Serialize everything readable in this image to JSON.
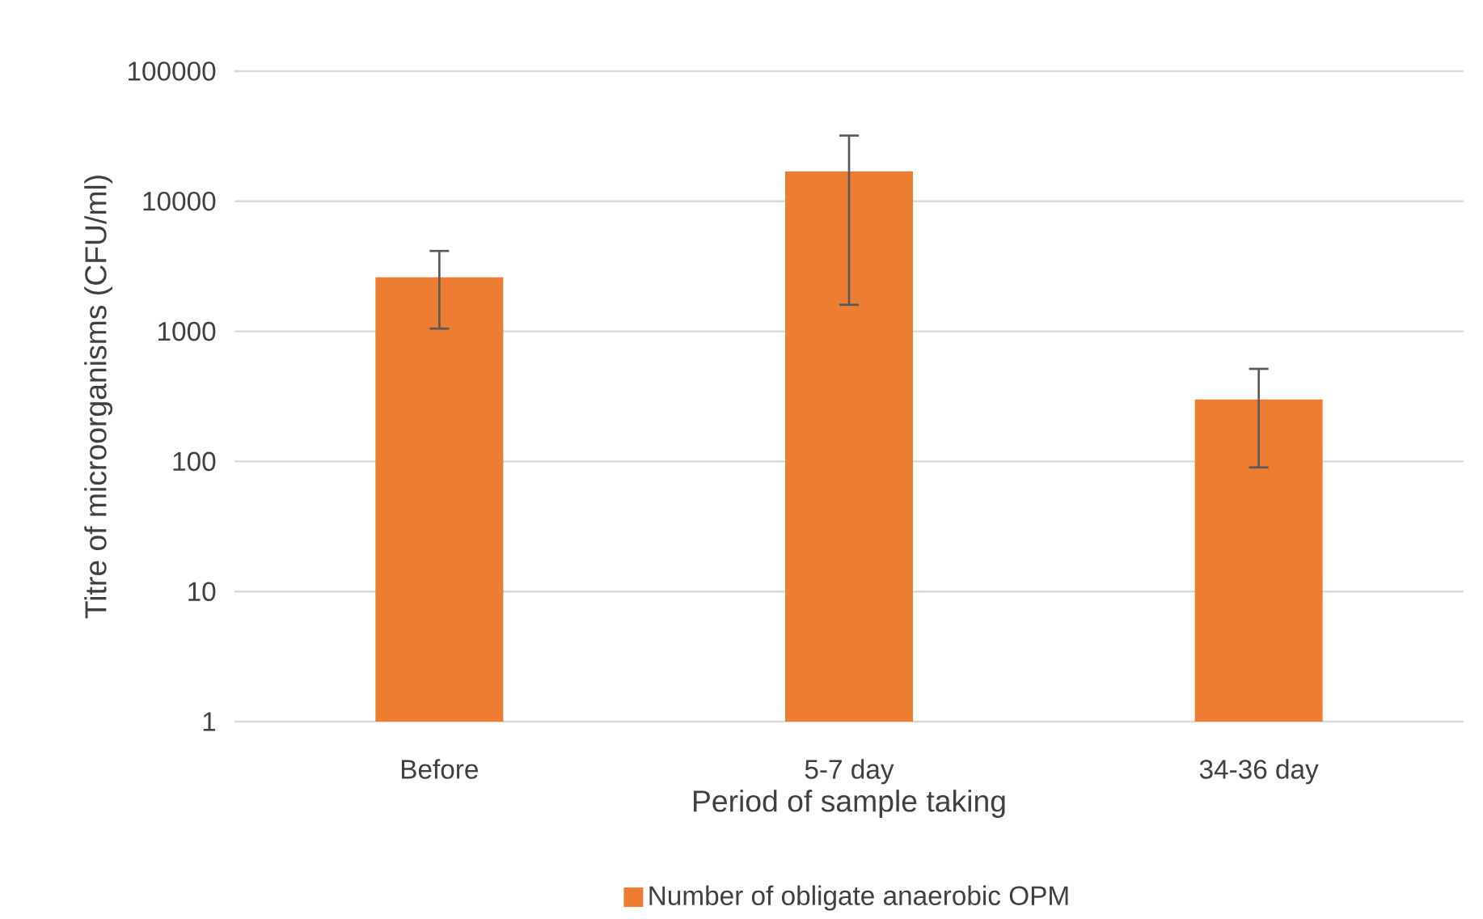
{
  "chart_data": {
    "type": "bar",
    "xlabel": "Period of sample taking",
    "ylabel": "Titre of microorganisms (CFU/ml)",
    "categories": [
      "Before",
      "5-7 day",
      "34-36 day"
    ],
    "series": [
      {
        "name": "Number of obligate anaerobic OPM",
        "color": "#ed7d31",
        "values": [
          2600,
          17000,
          300
        ],
        "errors": [
          [
            1050,
            4150
          ],
          [
            1600,
            32000
          ],
          [
            90,
            515
          ]
        ]
      }
    ],
    "log": "y",
    "ylim": [
      1,
      100000
    ],
    "yticks": [
      1,
      10,
      100,
      1000,
      10000,
      100000
    ],
    "grid": "y",
    "legend": "bottom"
  }
}
